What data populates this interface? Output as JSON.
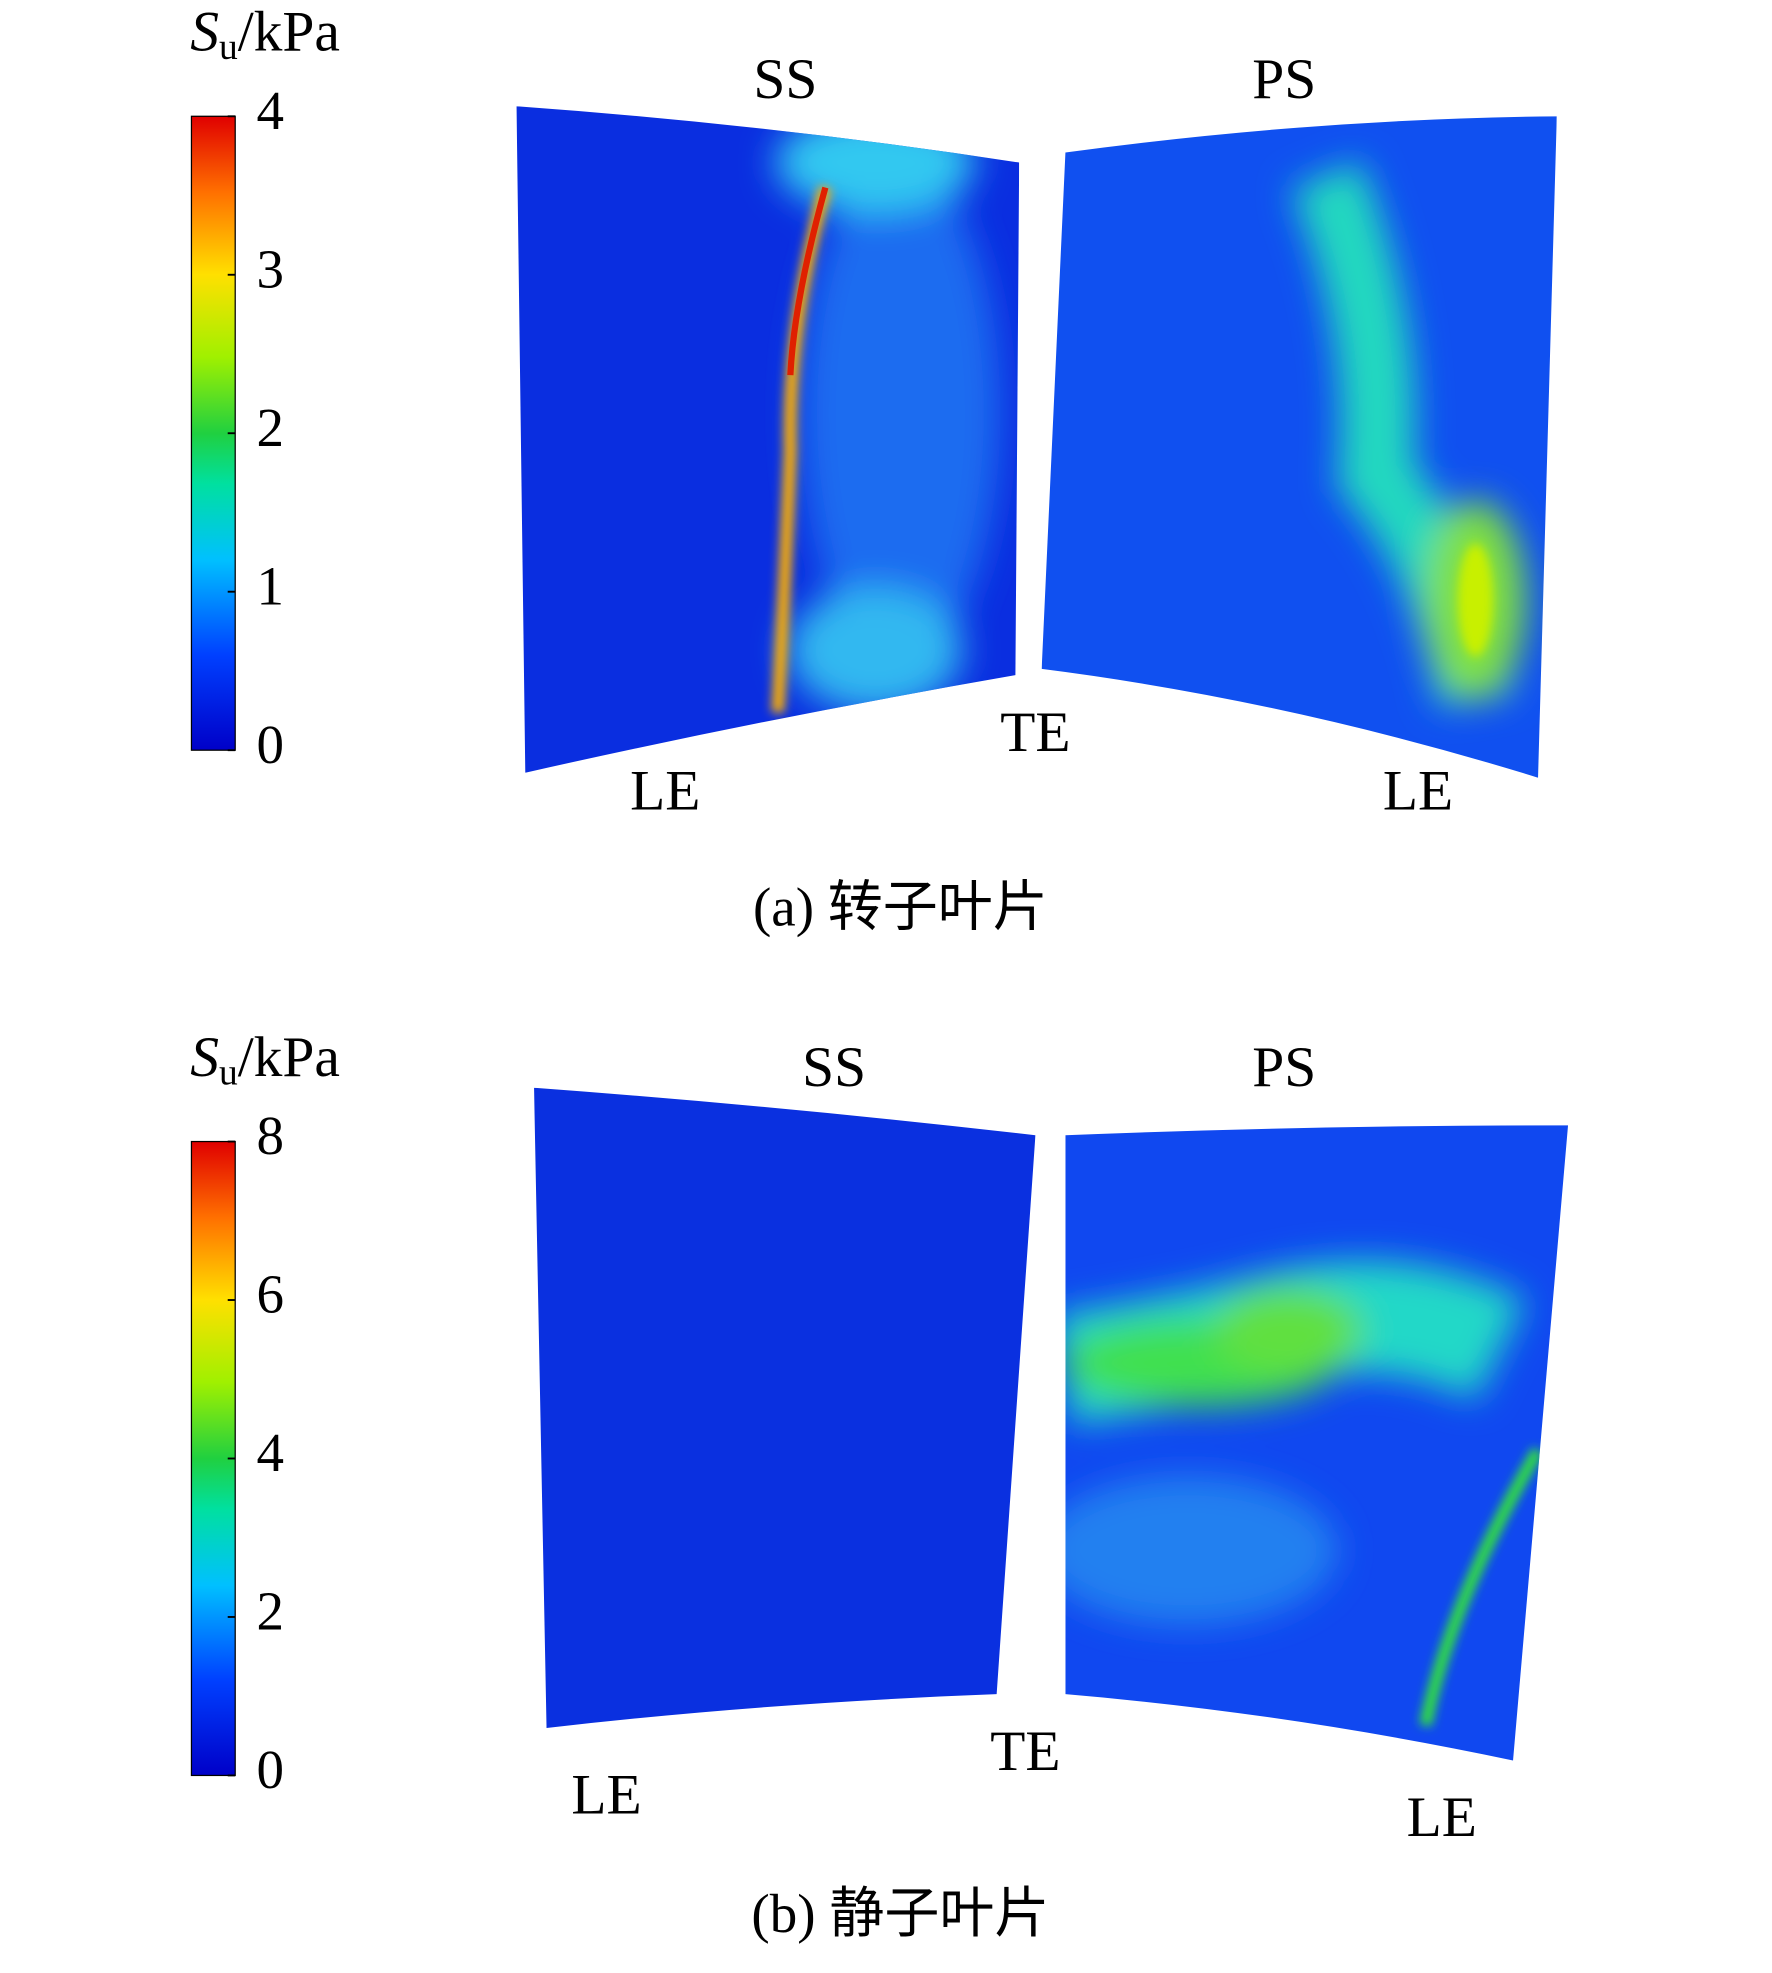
{
  "panels": [
    {
      "colorbar": {
        "symbol": "S",
        "subscript": "u",
        "unit": "/kPa",
        "lim": [
          0,
          4
        ],
        "ticks": [
          0,
          1,
          2,
          3,
          4
        ]
      },
      "labels": {
        "ss": "SS",
        "ps": "PS",
        "te": "TE",
        "le_left": "LE",
        "le_right": "LE"
      },
      "caption": "(a) 转子叶片"
    },
    {
      "colorbar": {
        "symbol": "S",
        "subscript": "u",
        "unit": "/kPa",
        "lim": [
          0,
          8
        ],
        "ticks": [
          0,
          2,
          4,
          6,
          8
        ]
      },
      "labels": {
        "ss": "SS",
        "ps": "PS",
        "te": "TE",
        "le_left": "LE",
        "le_right": "LE"
      },
      "caption": "(b) 静子叶片"
    }
  ]
}
